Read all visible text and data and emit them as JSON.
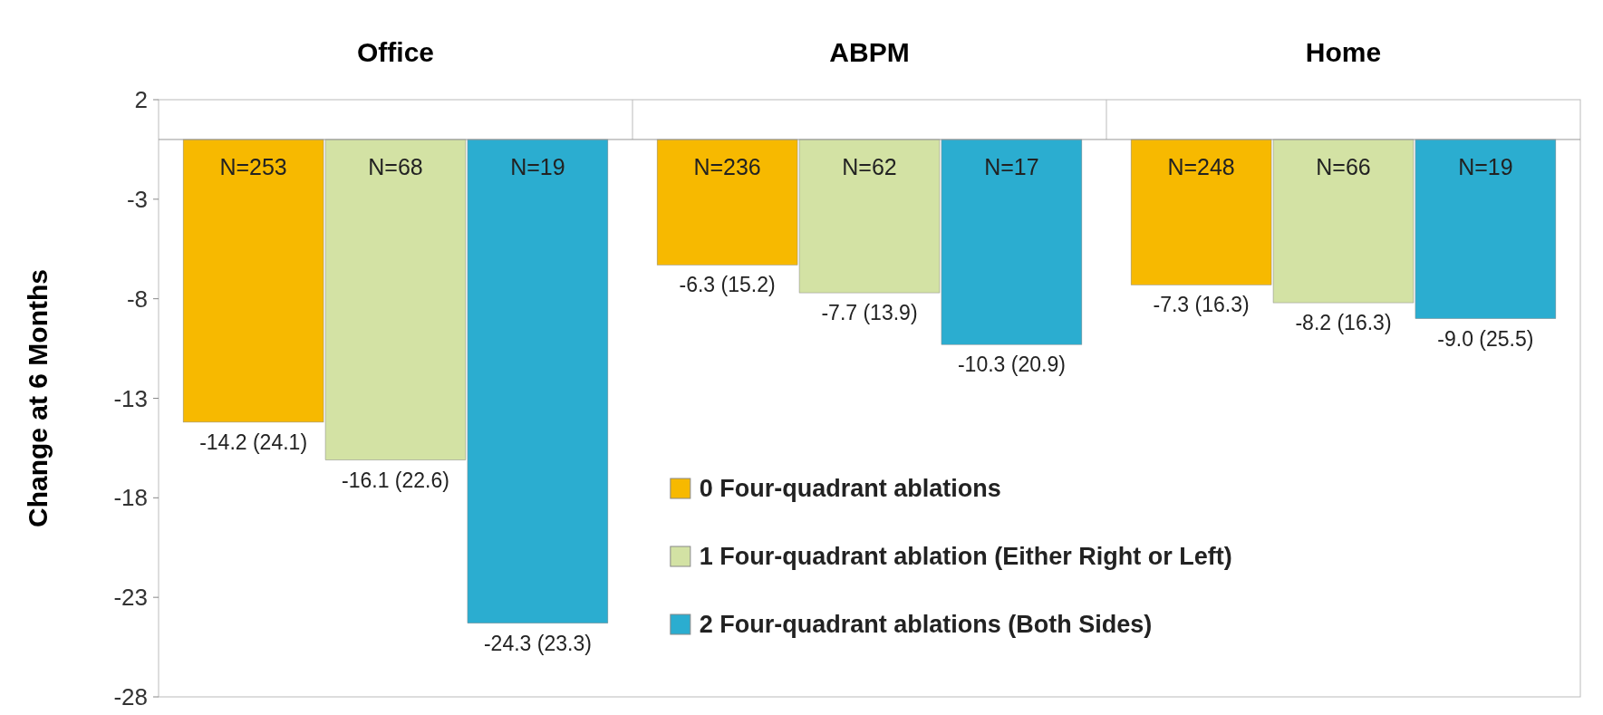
{
  "chart_data": {
    "type": "bar",
    "ylabel": "Change at 6 Months",
    "categories": [
      "Office",
      "ABPM",
      "Home"
    ],
    "ylim": [
      -28,
      2
    ],
    "yticks": [
      2,
      -3,
      -8,
      -13,
      -18,
      -23,
      -28
    ],
    "legend": "bottom right",
    "series": [
      {
        "name": "0 Four-quadrant ablations",
        "color": "#f7b900",
        "values": [
          -14.2,
          -6.3,
          -7.3
        ],
        "value_labels": [
          "-14.2 (24.1)",
          "-6.3 (15.2)",
          "-7.3 (16.3)"
        ]
      },
      {
        "name": "1 Four-quadrant ablation (Either Right or Left)",
        "color": "#d3e2a4",
        "values": [
          -16.1,
          -7.7,
          -8.2
        ],
        "value_labels": [
          "-16.1 (22.6)",
          "-7.7 (13.9)",
          "-8.2 (16.3)"
        ]
      },
      {
        "name": "2 Four-quadrant ablations (Both Sides)",
        "color": "#2badd0",
        "values": [
          -24.3,
          -10.3,
          -9.0
        ],
        "value_labels": [
          "-24.3 (23.3)",
          "-10.3 (20.9)",
          "-9.0 (25.5)"
        ]
      }
    ],
    "annotations": [
      "N=253",
      "N=68",
      "N=19",
      "N=236",
      "N=62",
      "N=17",
      "N=248",
      "N=66",
      "N=19"
    ]
  }
}
